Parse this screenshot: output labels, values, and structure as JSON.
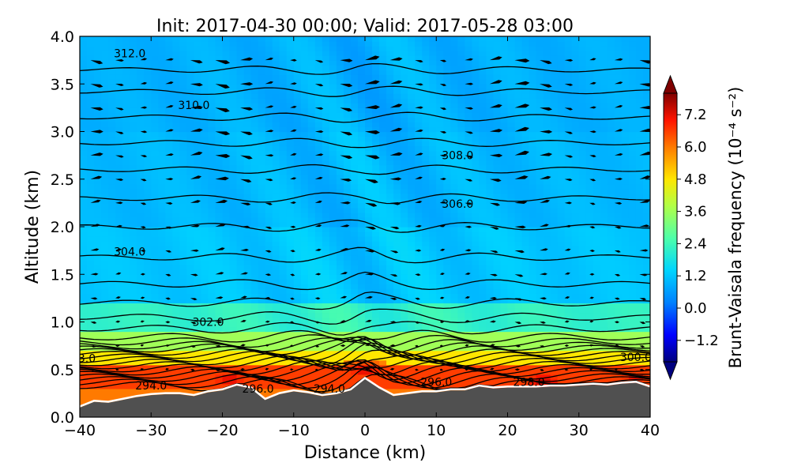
{
  "chart_data": {
    "type": "heatmap",
    "title": "Init: 2017-04-30 00:00; Valid: 2017-05-28 03:00",
    "xlabel": "Distance (km)",
    "ylabel": "Altitude (km)",
    "xlim": [
      -40,
      40
    ],
    "ylim": [
      0.0,
      4.0
    ],
    "x_ticks": [
      -40,
      -30,
      -20,
      -10,
      0,
      10,
      20,
      30,
      40
    ],
    "x_tick_labels": [
      "−40",
      "−30",
      "−20",
      "−10",
      "0",
      "10",
      "20",
      "30",
      "40"
    ],
    "y_ticks": [
      0.0,
      0.5,
      1.0,
      1.5,
      2.0,
      2.5,
      3.0,
      3.5,
      4.0
    ],
    "y_tick_labels": [
      "0.0",
      "0.5",
      "1.0",
      "1.5",
      "2.0",
      "2.5",
      "3.0",
      "3.5",
      "4.0"
    ],
    "colorbar": {
      "label": "Brunt-Vaisala frequency (10⁻⁴ s⁻²)",
      "range": [
        -2.0,
        8.0
      ],
      "ticks": [
        -1.2,
        0.0,
        1.2,
        2.4,
        3.6,
        4.8,
        6.0,
        7.2
      ],
      "tick_labels": [
        "−1.2",
        "0.0",
        "1.2",
        "2.4",
        "3.6",
        "4.8",
        "6.0",
        "7.2"
      ],
      "extend": "both"
    },
    "terrain_profile": {
      "x": [
        -40,
        -38,
        -36,
        -34,
        -32,
        -30,
        -28,
        -26,
        -24,
        -22,
        -20,
        -18,
        -16,
        -14,
        -12,
        -10,
        -8,
        -6,
        -4,
        -2,
        0,
        2,
        4,
        6,
        8,
        10,
        12,
        14,
        16,
        18,
        20,
        22,
        24,
        26,
        28,
        30,
        32,
        34,
        36,
        38,
        40
      ],
      "altitude": [
        0.1,
        0.16,
        0.15,
        0.18,
        0.21,
        0.23,
        0.24,
        0.24,
        0.22,
        0.26,
        0.28,
        0.33,
        0.3,
        0.18,
        0.24,
        0.27,
        0.25,
        0.22,
        0.24,
        0.28,
        0.4,
        0.3,
        0.22,
        0.24,
        0.26,
        0.26,
        0.28,
        0.28,
        0.32,
        0.3,
        0.31,
        0.31,
        0.31,
        0.32,
        0.32,
        0.33,
        0.34,
        0.33,
        0.35,
        0.36,
        0.31
      ]
    },
    "n_squared_field": {
      "description_bands": [
        {
          "altitude_range": [
            3.0,
            4.0
          ],
          "value": 0.9
        },
        {
          "altitude_range": [
            2.0,
            3.0
          ],
          "value": 1.0
        },
        {
          "altitude_range": [
            1.2,
            2.0
          ],
          "value": 1.2
        },
        {
          "altitude_range": [
            0.9,
            1.2
          ],
          "value": 2.2
        },
        {
          "altitude_range": [
            0.7,
            0.9
          ],
          "value": 3.6
        },
        {
          "altitude_range": [
            0.55,
            0.7
          ],
          "value": 4.8
        },
        {
          "altitude_range": [
            0.3,
            0.55
          ],
          "value": 6.6
        }
      ],
      "maxima": [
        {
          "x": -19,
          "altitude": 0.4,
          "value": 7.6
        },
        {
          "x": 0,
          "altitude": 0.5,
          "value": 7.6
        },
        {
          "x": 25,
          "altitude": 0.38,
          "value": 7.8
        },
        {
          "x": 38,
          "altitude": 0.42,
          "value": 7.4
        }
      ]
    },
    "theta_contours": {
      "levels": [
        292.0,
        292.5,
        293.0,
        293.5,
        294.0,
        294.5,
        295.0,
        295.5,
        296.0,
        296.5,
        297.0,
        297.5,
        298.0,
        298.5,
        299.0,
        299.5,
        300.0,
        301.0,
        302.0,
        303.0,
        304.0,
        305.0,
        306.0,
        307.0,
        308.0,
        309.0,
        310.0,
        311.0,
        312.0
      ],
      "base_altitude": [
        0.33,
        0.36,
        0.39,
        0.42,
        0.45,
        0.48,
        0.51,
        0.54,
        0.57,
        0.6,
        0.63,
        0.66,
        0.69,
        0.72,
        0.75,
        0.79,
        0.84,
        0.93,
        1.05,
        1.2,
        1.4,
        1.68,
        2.0,
        2.3,
        2.6,
        2.88,
        3.15,
        3.42,
        3.65
      ],
      "labels": [
        {
          "text": "294.0",
          "x": -30,
          "altitude": 0.33
        },
        {
          "text": "296.0",
          "x": -15,
          "altitude": 0.3
        },
        {
          "text": "294.0",
          "x": -5,
          "altitude": 0.3
        },
        {
          "text": "296.0",
          "x": 10,
          "altitude": 0.37
        },
        {
          "text": "298.0",
          "x": 23,
          "altitude": 0.37
        },
        {
          "text": "300.0",
          "x": 38,
          "altitude": 0.63
        },
        {
          "text": "3.0",
          "x": -39,
          "altitude": 0.62
        },
        {
          "text": "302.0",
          "x": -22,
          "altitude": 1.0
        },
        {
          "text": "304.0",
          "x": -33,
          "altitude": 1.74
        },
        {
          "text": "306.0",
          "x": 13,
          "altitude": 2.24
        },
        {
          "text": "308.0",
          "x": 13,
          "altitude": 2.75
        },
        {
          "text": "310.0",
          "x": -24,
          "altitude": 3.28
        },
        {
          "text": "312.0",
          "x": -33,
          "altitude": 3.82
        }
      ]
    },
    "wind_vectors": {
      "note": "horizontal/vertical wind arrows, predominantly eastward aloft, weak near surface",
      "grid_x_spacing_km": 3.5,
      "grid_altitude_spacing_km": 0.25,
      "altitude_range": [
        0.5,
        3.9
      ]
    }
  }
}
